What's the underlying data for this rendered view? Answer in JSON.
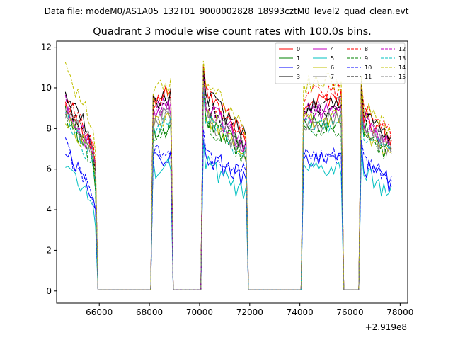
{
  "header": {
    "data_file": "Data file: modeM0/AS1A05_132T01_9000002828_18993cztM0_level2_quad_clean.evt"
  },
  "chart_data": {
    "type": "line",
    "title": "Quadrant 3 module wise count rates with 100.0s bins.",
    "xlabel": "",
    "ylabel": "",
    "x_offset_label": "+2.919e8",
    "xlim": [
      64300,
      78300
    ],
    "ylim": [
      -0.6,
      12.3
    ],
    "x_ticks": [
      66000,
      68000,
      70000,
      72000,
      74000,
      76000,
      78000
    ],
    "x_tick_labels": [
      "66000",
      "68000",
      "70000",
      "72000",
      "74000",
      "76000",
      "78000"
    ],
    "y_ticks": [
      0,
      2,
      4,
      6,
      8,
      10,
      12
    ],
    "y_tick_labels": [
      "0",
      "2",
      "4",
      "6",
      "8",
      "10",
      "12"
    ],
    "grid": false,
    "legend_position": "top-right",
    "segments": [
      {
        "start": 64650,
        "end": 65850
      },
      {
        "start": 68100,
        "end": 68850
      },
      {
        "start": 70150,
        "end": 71850
      },
      {
        "start": 74150,
        "end": 75650
      },
      {
        "start": 76450,
        "end": 77650
      }
    ],
    "gap_value": 0.05,
    "series": [
      {
        "name": "0",
        "color": "#ff0000",
        "dash": false,
        "seg_levels": [
          9.4,
          9.4,
          10.0,
          9.3,
          8.8
        ],
        "seg_slopes": [
          -2.3,
          0.3,
          -2.5,
          0.3,
          -1.5
        ]
      },
      {
        "name": "1",
        "color": "#008000",
        "dash": false,
        "seg_levels": [
          8.8,
          8.0,
          8.5,
          8.2,
          8.0
        ],
        "seg_slopes": [
          -2.5,
          0.2,
          -1.6,
          0.2,
          -1.0
        ]
      },
      {
        "name": "2",
        "color": "#0000ff",
        "dash": false,
        "seg_levels": [
          6.9,
          6.5,
          6.7,
          6.4,
          6.2
        ],
        "seg_slopes": [
          -2.2,
          0.2,
          -1.2,
          0.1,
          -0.9
        ]
      },
      {
        "name": "3",
        "color": "#000000",
        "dash": false,
        "seg_levels": [
          10.0,
          9.3,
          9.9,
          9.1,
          8.9
        ],
        "seg_slopes": [
          -3.0,
          0.3,
          -2.4,
          0.3,
          -1.2
        ]
      },
      {
        "name": "4",
        "color": "#c000c0",
        "dash": false,
        "seg_levels": [
          9.0,
          8.7,
          9.3,
          8.7,
          8.3
        ],
        "seg_slopes": [
          -2.3,
          0.3,
          -2.2,
          0.2,
          -1.1
        ]
      },
      {
        "name": "5",
        "color": "#00c0c0",
        "dash": false,
        "seg_levels": [
          6.4,
          6.0,
          6.4,
          5.9,
          5.8
        ],
        "seg_slopes": [
          -2.4,
          0.2,
          -1.7,
          0.1,
          -1.0
        ]
      },
      {
        "name": "6",
        "color": "#c0c000",
        "dash": false,
        "seg_levels": [
          8.6,
          8.3,
          8.8,
          8.4,
          7.9
        ],
        "seg_slopes": [
          -2.2,
          0.2,
          -2.0,
          0.2,
          -1.2
        ]
      },
      {
        "name": "7",
        "color": "#808080",
        "dash": false,
        "seg_levels": [
          8.9,
          8.4,
          8.7,
          8.2,
          8.0
        ],
        "seg_slopes": [
          -2.3,
          0.2,
          -2.0,
          0.2,
          -1.1
        ]
      },
      {
        "name": "8",
        "color": "#ff0000",
        "dash": true,
        "seg_levels": [
          9.6,
          9.3,
          9.9,
          9.6,
          9.0
        ],
        "seg_slopes": [
          -2.6,
          0.3,
          -2.3,
          0.2,
          -1.2
        ]
      },
      {
        "name": "9",
        "color": "#008000",
        "dash": true,
        "seg_levels": [
          8.6,
          7.8,
          8.3,
          7.8,
          7.6
        ],
        "seg_slopes": [
          -2.4,
          0.2,
          -1.8,
          0.2,
          -1.0
        ]
      },
      {
        "name": "10",
        "color": "#0000ff",
        "dash": true,
        "seg_levels": [
          7.1,
          6.8,
          6.9,
          6.5,
          6.4
        ],
        "seg_slopes": [
          -2.4,
          0.2,
          -1.1,
          0.1,
          -0.8
        ]
      },
      {
        "name": "11",
        "color": "#000000",
        "dash": true,
        "seg_levels": [
          9.4,
          9.4,
          9.4,
          8.9,
          8.5
        ],
        "seg_slopes": [
          -2.5,
          0.3,
          -2.2,
          0.2,
          -1.1
        ]
      },
      {
        "name": "12",
        "color": "#c000c0",
        "dash": true,
        "seg_levels": [
          9.3,
          8.9,
          9.2,
          8.9,
          8.5
        ],
        "seg_slopes": [
          -2.5,
          0.3,
          -2.1,
          0.2,
          -1.1
        ]
      },
      {
        "name": "13",
        "color": "#00c0c0",
        "dash": true,
        "seg_levels": [
          8.5,
          8.2,
          8.6,
          8.1,
          7.9
        ],
        "seg_slopes": [
          -2.3,
          0.2,
          -1.9,
          0.2,
          -1.0
        ]
      },
      {
        "name": "14",
        "color": "#c0c000",
        "dash": true,
        "seg_levels": [
          11.0,
          9.7,
          10.6,
          10.1,
          9.1
        ],
        "seg_slopes": [
          -3.0,
          0.4,
          -2.7,
          0.3,
          -1.3
        ]
      },
      {
        "name": "15",
        "color": "#808080",
        "dash": true,
        "seg_levels": [
          8.8,
          8.4,
          8.9,
          8.4,
          8.2
        ],
        "seg_slopes": [
          -2.2,
          0.2,
          -1.9,
          0.2,
          -1.1
        ]
      }
    ]
  }
}
